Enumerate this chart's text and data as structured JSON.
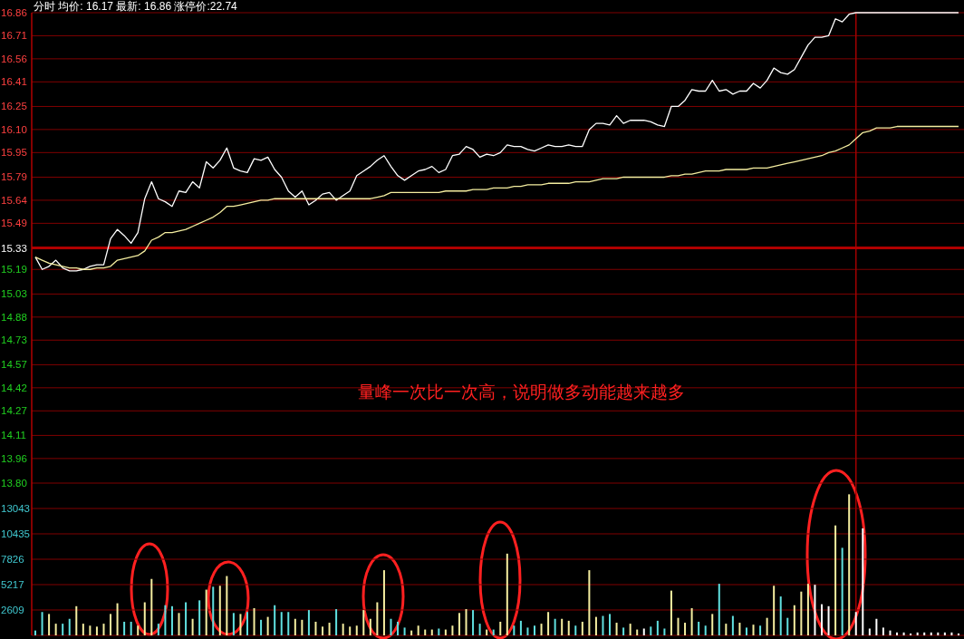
{
  "chart_data": [
    {
      "type": "line",
      "title": "分时 均价: 16.17 最新: 16.86 涨停价:22.74",
      "categories": [
        null,
        null,
        null,
        null,
        null,
        null,
        null,
        null,
        null,
        null,
        null,
        null,
        null,
        null,
        null,
        null,
        null,
        null,
        null,
        null,
        null,
        null,
        null,
        null,
        null,
        null,
        null,
        null,
        null,
        null,
        null,
        null,
        null,
        null,
        null,
        null,
        null,
        null,
        null,
        null,
        null,
        null,
        null,
        null,
        null,
        null,
        null,
        null,
        null,
        null,
        null,
        null,
        null,
        null,
        null,
        null,
        null,
        null,
        null,
        null,
        null,
        null,
        null,
        null,
        null,
        null,
        null,
        null,
        null,
        null,
        null,
        null,
        null,
        null,
        null,
        null,
        null,
        null,
        null,
        null,
        null,
        null,
        null,
        null,
        null,
        null,
        null,
        null,
        null,
        null,
        null,
        null,
        null,
        null,
        null,
        null,
        null,
        null,
        null,
        null,
        null,
        null,
        null,
        null,
        null,
        null,
        null,
        null,
        null,
        null,
        null,
        null,
        null,
        null,
        null,
        null,
        null,
        null,
        null,
        null,
        null,
        null,
        null,
        null,
        null,
        null,
        null,
        null,
        null,
        null,
        null,
        null,
        null,
        null,
        null,
        null
      ],
      "series": [
        {
          "color": "#ffffff",
          "values": [
            15.27,
            15.19,
            15.21,
            15.25,
            15.2,
            15.18,
            15.18,
            15.19,
            15.21,
            15.22,
            15.22,
            15.39,
            15.45,
            15.41,
            15.36,
            15.43,
            15.65,
            15.76,
            15.65,
            15.63,
            15.6,
            15.7,
            15.69,
            15.76,
            15.72,
            15.89,
            15.85,
            15.9,
            15.98,
            15.85,
            15.83,
            15.82,
            15.91,
            15.9,
            15.92,
            15.84,
            15.79,
            15.7,
            15.66,
            15.7,
            15.61,
            15.64,
            15.68,
            15.69,
            15.64,
            15.67,
            15.7,
            15.8,
            15.83,
            15.86,
            15.9,
            15.93,
            15.86,
            15.8,
            15.77,
            15.8,
            15.83,
            15.84,
            15.86,
            15.82,
            15.84,
            15.93,
            15.94,
            15.99,
            15.97,
            15.92,
            15.94,
            15.93,
            15.95,
            16.0,
            15.99,
            15.99,
            15.97,
            15.96,
            15.98,
            16.0,
            15.99,
            15.99,
            16.0,
            15.99,
            15.99,
            16.1,
            16.14,
            16.14,
            16.13,
            16.19,
            16.14,
            16.16,
            16.16,
            16.16,
            16.15,
            16.13,
            16.12,
            16.25,
            16.25,
            16.29,
            16.36,
            16.35,
            16.35,
            16.42,
            16.35,
            16.36,
            16.33,
            16.35,
            16.35,
            16.4,
            16.37,
            16.42,
            16.5,
            16.47,
            16.46,
            16.49,
            16.57,
            16.65,
            16.7,
            16.7,
            16.71,
            16.82,
            16.8,
            16.85,
            16.86,
            16.86,
            16.86,
            16.86,
            16.86,
            16.86,
            16.86,
            16.86,
            16.86,
            16.86,
            16.86,
            16.86,
            16.86,
            16.86,
            16.86,
            16.86
          ]
        },
        {
          "color": "#f5eea0",
          "values": [
            15.27,
            15.25,
            15.23,
            15.22,
            15.21,
            15.2,
            15.2,
            15.19,
            15.19,
            15.2,
            15.2,
            15.21,
            15.25,
            15.26,
            15.27,
            15.28,
            15.31,
            15.38,
            15.4,
            15.43,
            15.43,
            15.44,
            15.45,
            15.47,
            15.49,
            15.51,
            15.53,
            15.56,
            15.6,
            15.6,
            15.61,
            15.62,
            15.63,
            15.64,
            15.64,
            15.65,
            15.65,
            15.65,
            15.65,
            15.65,
            15.65,
            15.65,
            15.65,
            15.65,
            15.65,
            15.65,
            15.65,
            15.65,
            15.65,
            15.65,
            15.66,
            15.67,
            15.69,
            15.69,
            15.69,
            15.69,
            15.69,
            15.69,
            15.69,
            15.69,
            15.7,
            15.7,
            15.7,
            15.7,
            15.71,
            15.71,
            15.71,
            15.72,
            15.72,
            15.72,
            15.73,
            15.73,
            15.74,
            15.74,
            15.74,
            15.75,
            15.75,
            15.75,
            15.75,
            15.76,
            15.76,
            15.76,
            15.77,
            15.78,
            15.78,
            15.78,
            15.79,
            15.79,
            15.79,
            15.79,
            15.79,
            15.79,
            15.79,
            15.8,
            15.8,
            15.81,
            15.81,
            15.82,
            15.83,
            15.83,
            15.83,
            15.84,
            15.84,
            15.84,
            15.84,
            15.85,
            15.85,
            15.85,
            15.86,
            15.87,
            15.88,
            15.89,
            15.9,
            15.91,
            15.92,
            15.93,
            15.95,
            15.96,
            15.98,
            16.0,
            16.04,
            16.08,
            16.09,
            16.11,
            16.11,
            16.11,
            16.12,
            16.12,
            16.12,
            16.12,
            16.12,
            16.12,
            16.12,
            16.12,
            16.12,
            16.12
          ]
        }
      ],
      "ylim": [
        13.8,
        16.86
      ],
      "yticks": [
        {
          "value": 13.8,
          "label": "13.80"
        },
        13.96,
        14.11,
        14.27,
        14.42,
        14.57,
        14.73,
        14.88,
        15.03,
        15.19,
        15.33,
        15.49,
        15.64,
        15.79,
        15.95,
        {
          "value": 16.1,
          "label": "16.10"
        },
        16.25,
        16.41,
        16.56,
        16.71,
        16.86
      ],
      "grid": "y",
      "tick_labels": "y",
      "ref_lines": [
        {
          "axis": "y",
          "value": 15.33,
          "color": "#b00000"
        }
      ],
      "annotations": [
        "量峰一次比一次高，说明做多动能越来越多"
      ]
    },
    {
      "type": "bar",
      "categories": [
        null,
        null,
        null,
        null,
        null,
        null,
        null,
        null,
        null,
        null,
        null,
        null,
        null,
        null,
        null,
        null,
        null,
        null,
        null,
        null,
        null,
        null,
        null,
        null,
        null,
        null,
        null,
        null,
        null,
        null,
        null,
        null,
        null,
        null,
        null,
        null,
        null,
        null,
        null,
        null,
        null,
        null,
        null,
        null,
        null,
        null,
        null,
        null,
        null,
        null,
        null,
        null,
        null,
        null,
        null,
        null,
        null,
        null,
        null,
        null,
        null,
        null,
        null,
        null,
        null,
        null,
        null,
        null,
        null,
        null,
        null,
        null,
        null,
        null,
        null,
        null,
        null,
        null,
        null,
        null,
        null,
        null,
        null,
        null,
        null,
        null,
        null,
        null,
        null,
        null,
        null,
        null,
        null,
        null,
        null,
        null,
        null,
        null,
        null,
        null,
        null,
        null,
        null,
        null,
        null,
        null,
        null,
        null,
        null,
        null,
        null,
        null,
        null,
        null,
        null,
        null,
        null,
        null,
        null,
        null,
        null,
        null,
        null,
        null,
        null,
        null,
        null,
        null,
        null,
        null,
        null,
        null,
        null,
        null,
        null,
        null
      ],
      "values": [
        500,
        2400,
        2200,
        1200,
        1200,
        1700,
        3000,
        1200,
        1000,
        900,
        1200,
        2200,
        3300,
        1400,
        1400,
        1000,
        3400,
        5800,
        1200,
        3100,
        3000,
        2300,
        3400,
        1700,
        3600,
        4700,
        5000,
        5100,
        6100,
        2300,
        2200,
        2400,
        2800,
        1600,
        1900,
        3100,
        2400,
        2400,
        1700,
        1600,
        2600,
        1400,
        900,
        1300,
        2700,
        1200,
        900,
        1000,
        2600,
        1700,
        3400,
        6700,
        1700,
        1400,
        800,
        500,
        1000,
        600,
        600,
        700,
        600,
        1000,
        2300,
        2700,
        2600,
        1200,
        600,
        600,
        1400,
        8400,
        1000,
        1500,
        800,
        1000,
        1200,
        2400,
        1700,
        1700,
        1500,
        1000,
        1400,
        6700,
        1900,
        2000,
        2200,
        1300,
        800,
        1200,
        600,
        700,
        900,
        1500,
        700,
        4600,
        1800,
        1300,
        2800,
        1400,
        1000,
        2200,
        5300,
        1200,
        2000,
        1300,
        800,
        1100,
        1000,
        1800,
        5100,
        4000,
        1800,
        3100,
        4500,
        5300,
        5200,
        3200,
        3000,
        11300,
        9000,
        14500,
        2400,
        11000,
        700,
        1700,
        800,
        500,
        300,
        300,
        200,
        300,
        300,
        300,
        300,
        300,
        300,
        200
      ],
      "colors": [
        "#60e0e0",
        "#60e0e0",
        "#f5eea0",
        "#f5eea0",
        "#60e0e0",
        "#60e0e0",
        "#f5eea0",
        "#f5eea0",
        "#f5eea0",
        "#f5eea0",
        "#f5eea0",
        "#f5eea0",
        "#f5eea0",
        "#60e0e0",
        "#60e0e0",
        "#f5eea0",
        "#f5eea0",
        "#f5eea0",
        "#60e0e0",
        "#60e0e0",
        "#60e0e0",
        "#f5eea0",
        "#60e0e0",
        "#f5eea0",
        "#60e0e0",
        "#f5eea0",
        "#60e0e0",
        "#f5eea0",
        "#f5eea0",
        "#60e0e0",
        "#f5eea0",
        "#60e0e0",
        "#f5eea0",
        "#60e0e0",
        "#f5eea0",
        "#60e0e0",
        "#60e0e0",
        "#60e0e0",
        "#f5eea0",
        "#f5eea0",
        "#60e0e0",
        "#f5eea0",
        "#f5eea0",
        "#f5eea0",
        "#60e0e0",
        "#f5eea0",
        "#f5eea0",
        "#f5eea0",
        "#f5eea0",
        "#f5eea0",
        "#f5eea0",
        "#f5eea0",
        "#60e0e0",
        "#60e0e0",
        "#60e0e0",
        "#f5eea0",
        "#f5eea0",
        "#f5eea0",
        "#f5eea0",
        "#60e0e0",
        "#f5eea0",
        "#f5eea0",
        "#f5eea0",
        "#f5eea0",
        "#60e0e0",
        "#60e0e0",
        "#f5eea0",
        "#60e0e0",
        "#f5eea0",
        "#f5eea0",
        "#60e0e0",
        "#60e0e0",
        "#60e0e0",
        "#60e0e0",
        "#f5eea0",
        "#f5eea0",
        "#60e0e0",
        "#f5eea0",
        "#f5eea0",
        "#60e0e0",
        "#f5eea0",
        "#f5eea0",
        "#f5eea0",
        "#60e0e0",
        "#60e0e0",
        "#f5eea0",
        "#60e0e0",
        "#f5eea0",
        "#f5eea0",
        "#ffffff",
        "#60e0e0",
        "#60e0e0",
        "#60e0e0",
        "#f5eea0",
        "#f5eea0",
        "#f5eea0",
        "#f5eea0",
        "#60e0e0",
        "#60e0e0",
        "#f5eea0",
        "#60e0e0",
        "#f5eea0",
        "#60e0e0",
        "#f5eea0",
        "#60e0e0",
        "#f5eea0",
        "#60e0e0",
        "#f5eea0",
        "#f5eea0",
        "#60e0e0",
        "#60e0e0",
        "#f5eea0",
        "#f5eea0",
        "#f5eea0",
        "#ffffff",
        "#ffffff",
        "#ffffff",
        "#f5eea0",
        "#60e0e0",
        "#f5eea0",
        "#ffffff",
        "#ffffff",
        "#ffffff",
        "#ffffff",
        "#ffffff",
        "#ffffff",
        "#ffffff",
        "#ffffff",
        "#ffffff",
        "#ffffff",
        "#ffffff",
        "#ffffff",
        "#ffffff",
        "#ffffff",
        "#ffffff",
        "#ffffff"
      ],
      "ylim": [
        0,
        15652
      ],
      "yticks": [
        2609,
        5217,
        7826,
        10435,
        13043
      ],
      "grid": "y",
      "tick_labels": "y"
    }
  ]
}
